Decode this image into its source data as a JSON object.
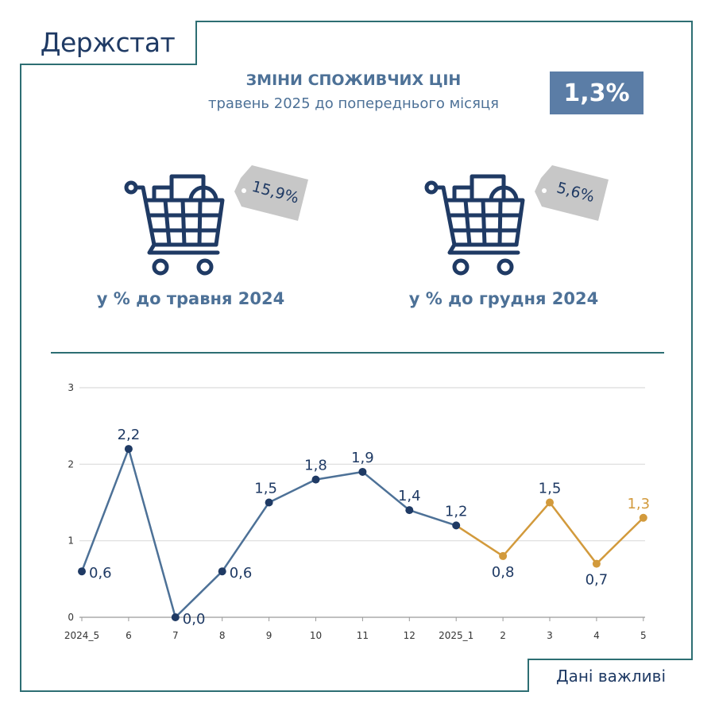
{
  "brand": "Держстат",
  "header": {
    "title": "ЗМІНИ СПОЖИВЧИХ ЦІН",
    "subtitle": "травень 2025 до попереднього місяця",
    "value": "1,3%"
  },
  "cards": [
    {
      "tag": "15,9%",
      "label": "у % до травня 2024"
    },
    {
      "tag": "5,6%",
      "label": "у % до грудня 2024"
    }
  ],
  "footer": "Дані важливі",
  "colors": {
    "navy": "#1f3a64",
    "steel": "#4d7197",
    "teal": "#2d6e73",
    "orange": "#d29a3c",
    "badge": "#5b7da6",
    "tag": "#c7c7c7"
  },
  "chart_data": {
    "type": "line",
    "categories": [
      "2024_5",
      "6",
      "7",
      "8",
      "9",
      "10",
      "11",
      "12",
      "2025_1",
      "2",
      "3",
      "4",
      "5"
    ],
    "values": [
      0.6,
      2.2,
      0.0,
      0.6,
      1.5,
      1.8,
      1.9,
      1.4,
      1.2,
      0.8,
      1.5,
      0.7,
      1.3
    ],
    "labels": [
      "0,6",
      "2,2",
      "0,0",
      "0,6",
      "1,5",
      "1,8",
      "1,9",
      "1,4",
      "1,2",
      "0,8",
      "1,5",
      "0,7",
      "1,3"
    ],
    "segments": [
      {
        "from": 0,
        "to": 8,
        "color": "#4d7197",
        "marker": "#1f3a64"
      },
      {
        "from": 8,
        "to": 12,
        "color": "#d29a3c",
        "marker": "#d29a3c"
      }
    ],
    "ylim": [
      0,
      3
    ],
    "yticks": [
      0,
      1,
      2,
      3
    ],
    "grid": true,
    "title": "",
    "xlabel": "",
    "ylabel": ""
  }
}
